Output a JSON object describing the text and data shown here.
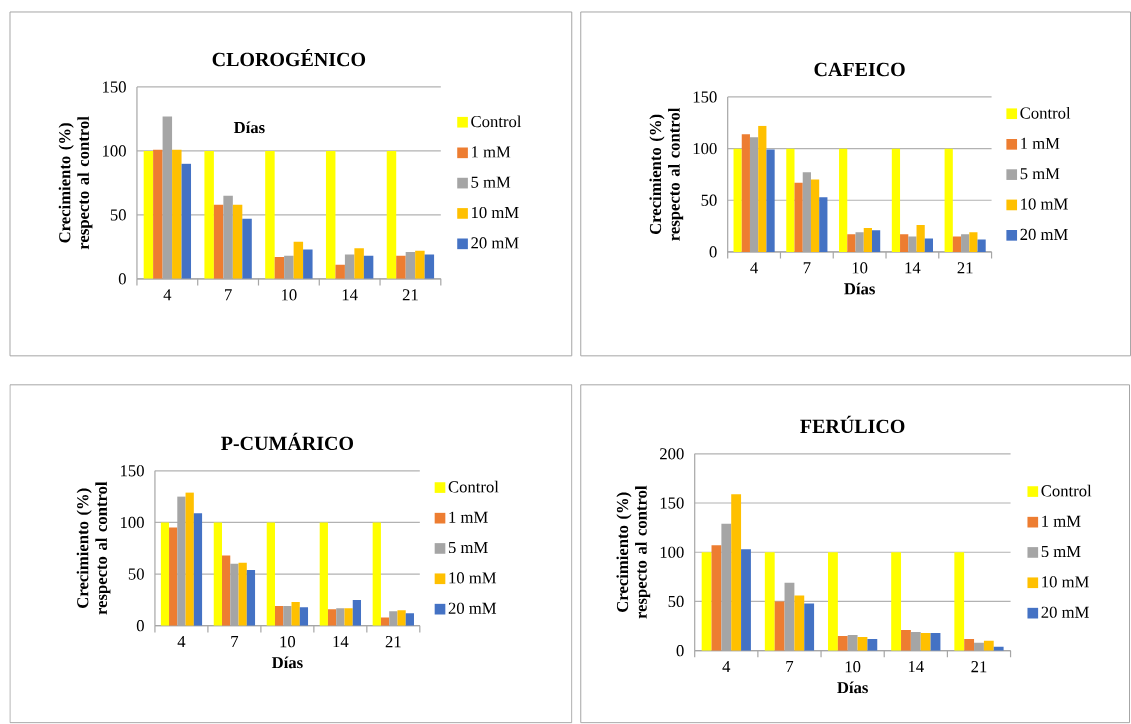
{
  "chart_data": [
    {
      "type": "bar",
      "title": "CLOROGÉNICO",
      "xlabel": "Días",
      "ylabel": "Crecimiento (%) respecto al control",
      "categories": [
        "4",
        "7",
        "10",
        "14",
        "21"
      ],
      "ylim": [
        0,
        150
      ],
      "yticks": [
        0,
        50,
        100,
        150
      ],
      "grid": "y",
      "legend": "right",
      "series": [
        {
          "name": "Control",
          "color": "#ffff00",
          "values": [
            100,
            100,
            100,
            100,
            100
          ]
        },
        {
          "name": "1 mM",
          "color": "#ed7d31",
          "values": [
            101,
            58,
            17,
            11,
            18
          ]
        },
        {
          "name": "5 mM",
          "color": "#a5a5a5",
          "values": [
            127,
            65,
            18,
            19,
            21
          ]
        },
        {
          "name": "10 mM",
          "color": "#ffc000",
          "values": [
            101,
            58,
            29,
            24,
            22
          ]
        },
        {
          "name": "20 mM",
          "color": "#4472c4",
          "values": [
            90,
            47,
            23,
            18,
            19
          ]
        }
      ]
    },
    {
      "type": "bar",
      "title": "CAFEICO",
      "xlabel": "Días",
      "ylabel": "Crecimiento (%) respecto al control",
      "categories": [
        "4",
        "7",
        "10",
        "14",
        "21"
      ],
      "ylim": [
        0,
        150
      ],
      "yticks": [
        0,
        50,
        100,
        150
      ],
      "grid": "y",
      "legend": "right",
      "series": [
        {
          "name": "Control",
          "color": "#ffff00",
          "values": [
            100,
            100,
            100,
            100,
            100
          ]
        },
        {
          "name": "1 mM",
          "color": "#ed7d31",
          "values": [
            114,
            67,
            17,
            17,
            15
          ]
        },
        {
          "name": "5 mM",
          "color": "#a5a5a5",
          "values": [
            111,
            77,
            19,
            15,
            17
          ]
        },
        {
          "name": "10 mM",
          "color": "#ffc000",
          "values": [
            122,
            70,
            23,
            26,
            19
          ]
        },
        {
          "name": "20 mM",
          "color": "#4472c4",
          "values": [
            99,
            53,
            21,
            13,
            12
          ]
        }
      ]
    },
    {
      "type": "bar",
      "title": "P-CUMÁRICO",
      "xlabel": "Días",
      "ylabel": "Crecimiento (%) respecto al control",
      "categories": [
        "4",
        "7",
        "10",
        "14",
        "21"
      ],
      "ylim": [
        0,
        150
      ],
      "yticks": [
        0,
        50,
        100,
        150
      ],
      "grid": "y",
      "legend": "right",
      "series": [
        {
          "name": "Control",
          "color": "#ffff00",
          "values": [
            100,
            100,
            100,
            100,
            100
          ]
        },
        {
          "name": "1 mM",
          "color": "#ed7d31",
          "values": [
            95,
            68,
            19,
            16,
            8
          ]
        },
        {
          "name": "5 mM",
          "color": "#a5a5a5",
          "values": [
            125,
            60,
            19,
            17,
            14
          ]
        },
        {
          "name": "10 mM",
          "color": "#ffc000",
          "values": [
            129,
            61,
            23,
            17,
            15
          ]
        },
        {
          "name": "20 mM",
          "color": "#4472c4",
          "values": [
            109,
            54,
            18,
            25,
            12
          ]
        }
      ]
    },
    {
      "type": "bar",
      "title": "FERÚLICO",
      "xlabel": "Días",
      "ylabel": "Crecimiento (%) respecto al control",
      "categories": [
        "4",
        "7",
        "10",
        "14",
        "21"
      ],
      "ylim": [
        0,
        200
      ],
      "yticks": [
        0,
        50,
        100,
        150,
        200
      ],
      "grid": "y",
      "legend": "right",
      "series": [
        {
          "name": "Control",
          "color": "#ffff00",
          "values": [
            100,
            100,
            100,
            100,
            100
          ]
        },
        {
          "name": "1 mM",
          "color": "#ed7d31",
          "values": [
            107,
            50,
            15,
            21,
            12
          ]
        },
        {
          "name": "5 mM",
          "color": "#a5a5a5",
          "values": [
            129,
            69,
            16,
            19,
            8
          ]
        },
        {
          "name": "10 mM",
          "color": "#ffc000",
          "values": [
            159,
            56,
            14,
            18,
            10
          ]
        },
        {
          "name": "20 mM",
          "color": "#4472c4",
          "values": [
            103,
            48,
            12,
            18,
            4
          ]
        }
      ]
    }
  ]
}
